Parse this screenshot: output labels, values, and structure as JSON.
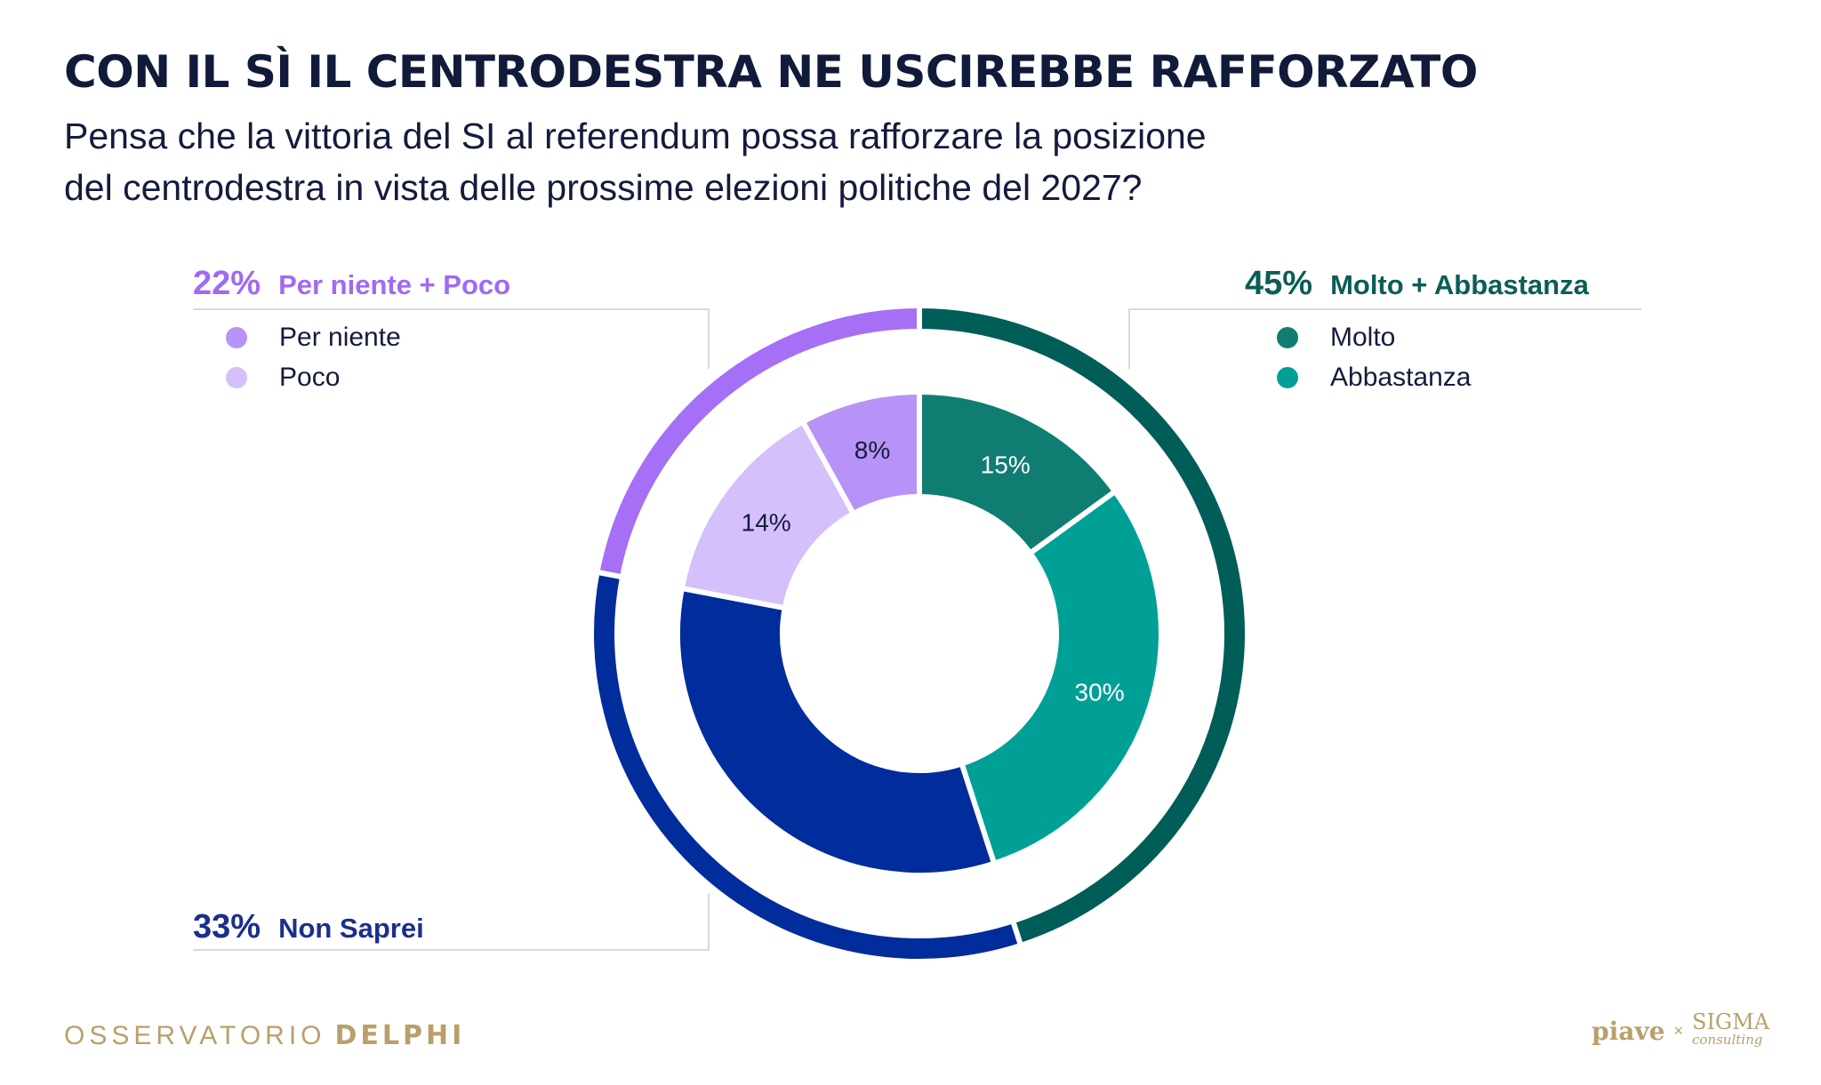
{
  "title": "CON IL SÌ IL CENTRODESTRA NE USCIREBBE RAFFORZATO",
  "subtitle_line1": "Pensa che la vittoria del SI al referendum possa rafforzare la posizione",
  "subtitle_line2": "del centrodestra in vista delle prossime elezioni politiche del 2027?",
  "groups": {
    "negative": {
      "pct": "22%",
      "label": "Per niente + Poco",
      "color": "#a06af2"
    },
    "positive": {
      "pct": "45%",
      "label": "Molto + Abbastanza",
      "color": "#0b5d56"
    },
    "unsure": {
      "pct": "33%",
      "label": "Non Saprei",
      "color": "#1b2f8c"
    }
  },
  "legend": {
    "per_niente": "Per niente",
    "poco": "Poco",
    "molto": "Molto",
    "abbastanza": "Abbastanza"
  },
  "chart_data": {
    "type": "pie",
    "variant": "nested-donut",
    "inner": [
      {
        "name": "Molto",
        "value": 15,
        "label": "15%",
        "color": "#0f7d72",
        "label_color": "#ffffff"
      },
      {
        "name": "Abbastanza",
        "value": 30,
        "label": "30%",
        "color": "#00a096",
        "label_color": "#ffffff"
      },
      {
        "name": "Non Saprei",
        "value": 33,
        "label": "",
        "color": "#002c9c",
        "label_color": "#ffffff"
      },
      {
        "name": "Poco",
        "value": 14,
        "label": "14%",
        "color": "#d4c0fb",
        "label_color": "#141b3c"
      },
      {
        "name": "Per niente",
        "value": 8,
        "label": "8%",
        "color": "#b792f7",
        "label_color": "#141b3c"
      }
    ],
    "outer": [
      {
        "name": "Molto + Abbastanza",
        "value": 45,
        "color": "#005d57"
      },
      {
        "name": "Non Saprei",
        "value": 33,
        "color": "#002c9c"
      },
      {
        "name": "Per niente + Poco",
        "value": 22,
        "color": "#a56ff6"
      }
    ],
    "legend_placement": "sides"
  },
  "footer": {
    "left_light": "OSSERVATORIO",
    "left_bold": "DELPHI",
    "right_piave": "piave",
    "right_x": "×",
    "right_sigma": "SIGMA",
    "right_consulting": "consulting"
  }
}
